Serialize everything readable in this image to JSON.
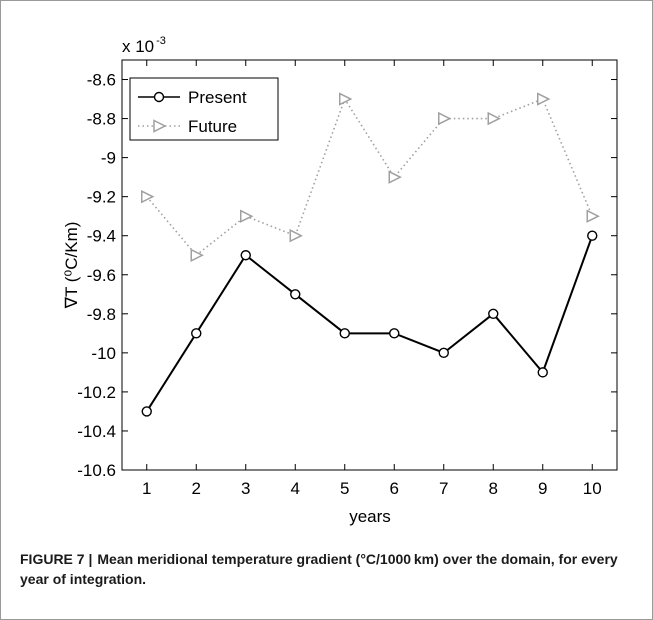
{
  "chart_data": {
    "type": "line",
    "title": "",
    "xlabel": "years",
    "ylabel": "∇T (⁰C/Km)",
    "exponent_label": "x 10",
    "exponent_power": "-3",
    "x": [
      1,
      2,
      3,
      4,
      5,
      6,
      7,
      8,
      9,
      10
    ],
    "xlim": [
      0.5,
      10.5
    ],
    "ylim": [
      -10.6,
      -8.5
    ],
    "x_ticks": [
      "1",
      "2",
      "3",
      "4",
      "5",
      "6",
      "7",
      "8",
      "9",
      "10"
    ],
    "y_tick_values": [
      -8.6,
      -8.8,
      -9,
      -9.2,
      -9.4,
      -9.6,
      -9.8,
      -10,
      -10.2,
      -10.4,
      -10.6
    ],
    "y_tick_labels": [
      "-8.6",
      "-8.8",
      "-9",
      "-9.2",
      "-9.4",
      "-9.6",
      "-9.8",
      "-10",
      "-10.2",
      "-10.4",
      "-10.6"
    ],
    "grid": false,
    "legend_position": "top-left",
    "series": [
      {
        "name": "Present",
        "values": [
          -10.3,
          -9.9,
          -9.5,
          -9.7,
          -9.9,
          -9.9,
          -10.0,
          -9.8,
          -10.1,
          -9.4
        ],
        "color": "#000000",
        "marker": "circle",
        "line_style": "solid"
      },
      {
        "name": "Future",
        "values": [
          -9.2,
          -9.5,
          -9.3,
          -9.4,
          -8.7,
          -9.1,
          -8.8,
          -8.8,
          -8.7,
          -9.3
        ],
        "color": "#a0a0a0",
        "marker": "triangle-right",
        "line_style": "dotted"
      }
    ]
  },
  "caption": {
    "label": "FIGURE 7 |",
    "text": "Mean meridional temperature gradient (°C/1000 km) over the domain, for every year of integration."
  }
}
